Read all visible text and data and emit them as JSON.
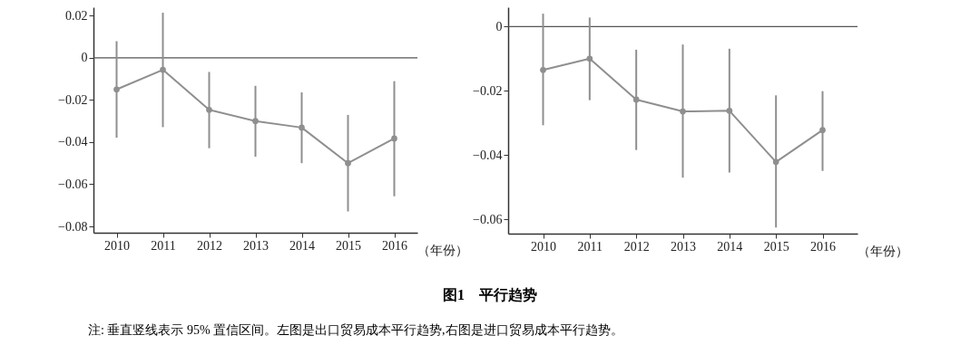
{
  "chart_data": [
    {
      "type": "line",
      "annotations": [
        "图1　平行趋势",
        "注: 垂直竖线表示 95% 置信区间。左图是出口贸易成本平行趋势,右图是进口贸易成本平行趋势。"
      ],
      "xlabel": "（年份）",
      "categories": [
        "2010",
        "2011",
        "2012",
        "2013",
        "2014",
        "2015",
        "2016"
      ],
      "series": [
        {
          "color": "#8f8f8f",
          "values": [
            -0.015,
            -0.0057,
            -0.0247,
            -0.03,
            -0.0331,
            -0.05,
            -0.0383
          ],
          "errors": [
            [
              -0.0379,
              0.0079
            ],
            [
              -0.0329,
              0.0214
            ],
            [
              -0.0429,
              -0.0067
            ],
            [
              -0.0469,
              -0.0133
            ],
            [
              -0.05,
              -0.0164
            ],
            [
              -0.0729,
              -0.0271
            ],
            [
              -0.0657,
              -0.0111
            ]
          ]
        }
      ],
      "ylim": [
        -0.083,
        0.024
      ],
      "yticks": [
        -0.08,
        -0.06,
        -0.04,
        -0.02,
        0,
        0.02
      ],
      "grid": false,
      "marker": "circle",
      "line_style": "solid",
      "ref_lines": [
        {
          "axis": "y",
          "value": 0,
          "color": "#555555"
        }
      ]
    },
    {
      "type": "line",
      "xlabel": "（年份）",
      "categories": [
        "2010",
        "2011",
        "2012",
        "2013",
        "2014",
        "2015",
        "2016"
      ],
      "series": [
        {
          "color": "#8f8f8f",
          "values": [
            -0.0135,
            -0.01,
            -0.0227,
            -0.0264,
            -0.0262,
            -0.0421,
            -0.0322
          ],
          "errors": [
            [
              -0.0307,
              0.004
            ],
            [
              -0.0229,
              0.0028
            ],
            [
              -0.0384,
              -0.0072
            ],
            [
              -0.047,
              -0.0056
            ],
            [
              -0.0454,
              -0.0069
            ],
            [
              -0.0625,
              -0.0214
            ],
            [
              -0.0449,
              -0.0201
            ]
          ]
        }
      ],
      "ylim": [
        -0.0644,
        0.006
      ],
      "yticks": [
        -0.06,
        -0.04,
        -0.02,
        0
      ],
      "grid": false,
      "marker": "circle",
      "line_style": "solid",
      "ref_lines": [
        {
          "axis": "y",
          "value": 0,
          "color": "#555555"
        }
      ]
    }
  ]
}
